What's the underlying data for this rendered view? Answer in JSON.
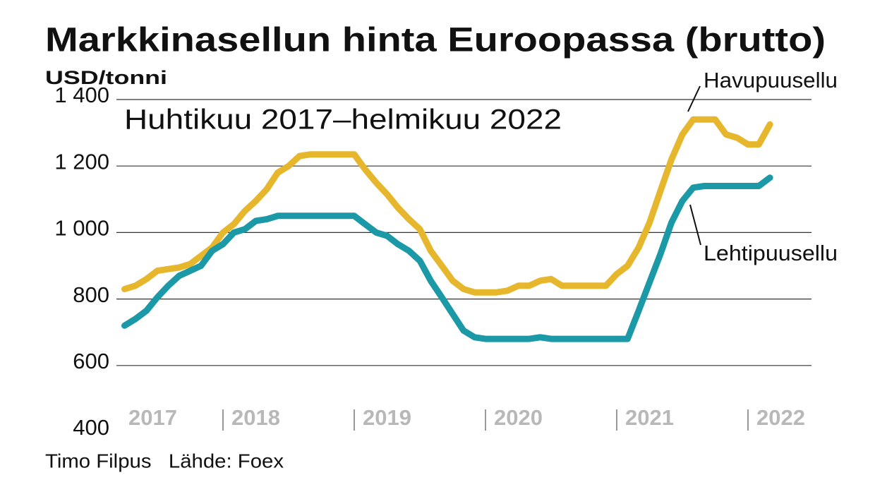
{
  "chart_data": {
    "type": "line",
    "title": "Markkinasellun hinta Euroopassa (brutto)",
    "y_label": "USD/tonni",
    "subtitle": "Huhtikuu 2017–helmikuu 2022",
    "footer": "Timo Filpus   Lähde: Foex",
    "x": [
      2017.25,
      2017.333,
      2017.417,
      2017.5,
      2017.583,
      2017.667,
      2017.75,
      2017.833,
      2017.917,
      2018,
      2018.083,
      2018.167,
      2018.25,
      2018.333,
      2018.417,
      2018.5,
      2018.583,
      2018.667,
      2018.75,
      2018.833,
      2018.917,
      2019,
      2019.083,
      2019.167,
      2019.25,
      2019.333,
      2019.417,
      2019.5,
      2019.583,
      2019.667,
      2019.75,
      2019.833,
      2019.917,
      2020,
      2020.083,
      2020.167,
      2020.25,
      2020.333,
      2020.417,
      2020.5,
      2020.583,
      2020.667,
      2020.75,
      2020.833,
      2020.917,
      2021,
      2021.083,
      2021.167,
      2021.25,
      2021.333,
      2021.417,
      2021.5,
      2021.583,
      2021.667,
      2021.75,
      2021.833,
      2021.917,
      2022,
      2022.083,
      2022.167
    ],
    "series": [
      {
        "name": "Havupuusellu",
        "color": "#e6b62d",
        "values": [
          830,
          840,
          860,
          885,
          890,
          895,
          905,
          930,
          955,
          1000,
          1025,
          1065,
          1095,
          1130,
          1180,
          1200,
          1230,
          1235,
          1235,
          1235,
          1235,
          1235,
          1190,
          1150,
          1115,
          1075,
          1040,
          1010,
          945,
          900,
          855,
          830,
          820,
          820,
          820,
          825,
          840,
          840,
          855,
          860,
          840,
          840,
          840,
          840,
          840,
          875,
          900,
          955,
          1030,
          1125,
          1220,
          1295,
          1340,
          1340,
          1340,
          1295,
          1285,
          1265,
          1265,
          1325
        ]
      },
      {
        "name": "Lehtipuusellu",
        "color": "#1b99a6",
        "values": [
          720,
          740,
          765,
          805,
          840,
          870,
          885,
          900,
          945,
          965,
          1000,
          1010,
          1035,
          1040,
          1050,
          1050,
          1050,
          1050,
          1050,
          1050,
          1050,
          1050,
          1025,
          1000,
          990,
          965,
          945,
          915,
          855,
          805,
          755,
          705,
          685,
          680,
          680,
          680,
          680,
          680,
          685,
          680,
          680,
          680,
          680,
          680,
          680,
          680,
          680,
          765,
          850,
          935,
          1030,
          1095,
          1135,
          1140,
          1140,
          1140,
          1140,
          1140,
          1140,
          1165
        ]
      }
    ],
    "xlim": [
      2017,
      2022.4
    ],
    "xticks": [
      2017,
      2018,
      2019,
      2020,
      2021,
      2022
    ],
    "ylim": [
      400,
      1400
    ],
    "yticks": [
      {
        "value": 1400,
        "label": "1 400"
      },
      {
        "value": 1200,
        "label": "1 200"
      },
      {
        "value": 1000,
        "label": "1 000"
      },
      {
        "value": 800,
        "label": "800"
      },
      {
        "value": 600,
        "label": "600"
      },
      {
        "value": 400,
        "label": "400"
      }
    ],
    "grid": true
  }
}
